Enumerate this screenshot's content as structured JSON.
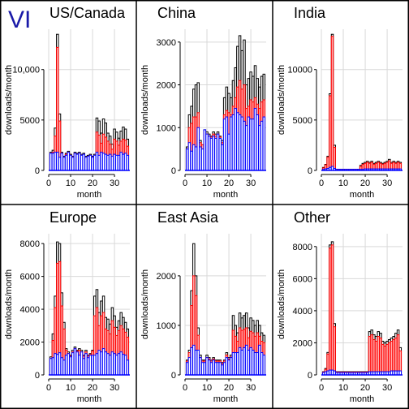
{
  "figure": {
    "label": "VI",
    "label_color": "#1a1aa8",
    "border_color": "#000000",
    "grid_color": "#d9d9d9",
    "colors": {
      "total": "#000000",
      "mid": "#ff0000",
      "base": "#0000ff",
      "mid_fill": "#ffb0b0",
      "base_fill": "#ffffff"
    }
  },
  "chart_data": [
    {
      "type": "bar",
      "title": "US/Canada",
      "xlabel": "month",
      "ylabel": "downloads/month",
      "xlim": [
        0,
        37
      ],
      "ylim": [
        0,
        14000
      ],
      "yticks": [
        0,
        5000,
        10000
      ],
      "ytick_labels": [
        "0",
        "5000",
        "10,000"
      ],
      "xticks": [
        0,
        10,
        20,
        30
      ],
      "xtick_labels": [
        "0",
        "10",
        "20",
        "30"
      ],
      "grid": true,
      "x": [
        1,
        2,
        3,
        4,
        5,
        6,
        7,
        8,
        9,
        10,
        11,
        12,
        13,
        14,
        15,
        16,
        17,
        18,
        19,
        20,
        21,
        22,
        23,
        24,
        25,
        26,
        27,
        28,
        29,
        30,
        31,
        32,
        33,
        34,
        35,
        36
      ],
      "series": [
        {
          "values": [
            1800,
            2000,
            4200,
            13500,
            5600,
            1800,
            1400,
            1700,
            1900,
            1600,
            1400,
            1800,
            1700,
            1800,
            1600,
            1700,
            1400,
            1500,
            1600,
            1400,
            1600,
            5200,
            4900,
            3700,
            5100,
            4700,
            3700,
            3400,
            2600,
            4100,
            3800,
            3200,
            3900,
            4300,
            4100,
            3100
          ]
        },
        {
          "values": [
            1700,
            1800,
            3400,
            12200,
            4900,
            1700,
            1300,
            1600,
            1800,
            1500,
            1300,
            1700,
            1600,
            1700,
            1500,
            1600,
            1300,
            1400,
            1500,
            1300,
            1500,
            3800,
            3500,
            2700,
            3600,
            3300,
            2900,
            2600,
            2100,
            3100,
            2900,
            2500,
            2900,
            3100,
            3000,
            2400
          ]
        },
        {
          "values": [
            1700,
            1700,
            1800,
            1800,
            1300,
            1700,
            1300,
            1500,
            1800,
            1500,
            1300,
            1700,
            1600,
            1700,
            1500,
            1600,
            1300,
            1400,
            1500,
            1300,
            1500,
            1800,
            1500,
            1800,
            1700,
            1600,
            1500,
            1600,
            1400,
            1600,
            1500,
            1500,
            1800,
            1600,
            1700,
            1500
          ]
        }
      ]
    },
    {
      "type": "bar",
      "title": "China",
      "xlabel": "month",
      "ylabel": "downloads/month",
      "xlim": [
        0,
        37
      ],
      "ylim": [
        0,
        3300
      ],
      "yticks": [
        0,
        1000,
        2000,
        3000
      ],
      "ytick_labels": [
        "0",
        "1000",
        "2000",
        "3000"
      ],
      "xticks": [
        0,
        10,
        20,
        30
      ],
      "xtick_labels": [
        "0",
        "10",
        "20",
        "30"
      ],
      "grid": true,
      "x": [
        1,
        2,
        3,
        4,
        5,
        6,
        7,
        8,
        9,
        10,
        11,
        12,
        13,
        14,
        15,
        16,
        17,
        18,
        19,
        20,
        21,
        22,
        23,
        24,
        25,
        26,
        27,
        28,
        29,
        30,
        31,
        32,
        33,
        34,
        35,
        36
      ],
      "series": [
        {
          "values": [
            550,
            1300,
            1500,
            1900,
            2000,
            2050,
            700,
            600,
            950,
            900,
            850,
            800,
            900,
            850,
            900,
            800,
            700,
            1700,
            1950,
            1800,
            1700,
            2100,
            2400,
            2900,
            3150,
            2800,
            3050,
            2000,
            2150,
            2300,
            2200,
            2450,
            2150,
            1950,
            2200,
            2250
          ]
        },
        {
          "values": [
            500,
            1000,
            1100,
            1250,
            1250,
            1350,
            650,
            600,
            900,
            850,
            800,
            780,
            850,
            800,
            850,
            780,
            650,
            1300,
            1400,
            1350,
            1300,
            1500,
            1700,
            1950,
            2100,
            1900,
            2000,
            1450,
            1500,
            1650,
            1600,
            1700,
            1550,
            1450,
            1600,
            1650
          ]
        },
        {
          "values": [
            500,
            650,
            450,
            600,
            550,
            1000,
            550,
            500,
            950,
            850,
            800,
            750,
            800,
            750,
            850,
            750,
            600,
            1200,
            1250,
            850,
            1250,
            1300,
            1450,
            1350,
            1300,
            1250,
            1150,
            1050,
            1250,
            1200,
            1200,
            1450,
            1300,
            1050,
            1150,
            1250
          ]
        }
      ]
    },
    {
      "type": "bar",
      "title": "India",
      "xlabel": "month",
      "ylabel": "downloads/month",
      "xlim": [
        0,
        37
      ],
      "ylim": [
        0,
        14000
      ],
      "yticks": [
        0,
        5000,
        10000
      ],
      "ytick_labels": [
        "0",
        "5000",
        "10000"
      ],
      "xticks": [
        0,
        10,
        20,
        30
      ],
      "xtick_labels": [
        "0",
        "10",
        "20",
        "30"
      ],
      "grid": true,
      "x": [
        1,
        2,
        3,
        4,
        5,
        6,
        7,
        8,
        9,
        10,
        11,
        12,
        13,
        14,
        15,
        16,
        17,
        18,
        19,
        20,
        21,
        22,
        23,
        24,
        25,
        26,
        27,
        28,
        29,
        30,
        31,
        32,
        33,
        34,
        35,
        36
      ],
      "series": [
        {
          "values": [
            300,
            600,
            1400,
            7600,
            13500,
            2500,
            100,
            100,
            100,
            100,
            100,
            100,
            100,
            100,
            100,
            100,
            100,
            500,
            700,
            800,
            900,
            800,
            900,
            700,
            800,
            900,
            800,
            700,
            800,
            900,
            1100,
            800,
            900,
            800,
            900,
            800
          ]
        },
        {
          "values": [
            250,
            550,
            1300,
            7400,
            13300,
            2300,
            100,
            100,
            100,
            100,
            100,
            100,
            100,
            100,
            100,
            100,
            100,
            400,
            600,
            700,
            800,
            700,
            800,
            600,
            700,
            800,
            700,
            600,
            700,
            800,
            950,
            700,
            800,
            700,
            800,
            700
          ]
        },
        {
          "values": [
            100,
            150,
            200,
            300,
            400,
            200,
            100,
            100,
            100,
            100,
            100,
            100,
            100,
            100,
            100,
            100,
            100,
            100,
            100,
            150,
            150,
            150,
            150,
            150,
            150,
            150,
            150,
            150,
            150,
            150,
            150,
            150,
            150,
            150,
            150,
            150
          ]
        }
      ]
    },
    {
      "type": "bar",
      "title": "Europe",
      "xlabel": "month",
      "ylabel": "downloads/month",
      "xlim": [
        0,
        37
      ],
      "ylim": [
        0,
        8600
      ],
      "yticks": [
        0,
        2000,
        4000,
        6000,
        8000
      ],
      "ytick_labels": [
        "0",
        "2000",
        "4000",
        "6000",
        "8000"
      ],
      "xticks": [
        0,
        10,
        20,
        30
      ],
      "xtick_labels": [
        "0",
        "10",
        "20",
        "30"
      ],
      "grid": true,
      "x": [
        1,
        2,
        3,
        4,
        5,
        6,
        7,
        8,
        9,
        10,
        11,
        12,
        13,
        14,
        15,
        16,
        17,
        18,
        19,
        20,
        21,
        22,
        23,
        24,
        25,
        26,
        27,
        28,
        29,
        30,
        31,
        32,
        33,
        34,
        35,
        36
      ],
      "series": [
        {
          "values": [
            1100,
            2500,
            4800,
            8100,
            8000,
            5000,
            3200,
            1600,
            1400,
            1200,
            1500,
            1700,
            1500,
            1600,
            1500,
            1200,
            1500,
            1200,
            1300,
            1500,
            4800,
            5200,
            3800,
            4500,
            4800,
            3500,
            3400,
            3100,
            4100,
            3600,
            2900,
            3300,
            3800,
            3500,
            3200,
            2800
          ]
        },
        {
          "values": [
            1000,
            2100,
            4100,
            6800,
            6900,
            4200,
            2800,
            1500,
            1300,
            1150,
            1400,
            1600,
            1450,
            1500,
            1400,
            1150,
            1400,
            1150,
            1250,
            1450,
            3600,
            4100,
            3000,
            3600,
            3800,
            2800,
            2700,
            2500,
            3300,
            2900,
            2400,
            2700,
            3000,
            2800,
            2600,
            2300
          ]
        },
        {
          "values": [
            1000,
            1050,
            1300,
            1250,
            1350,
            1050,
            900,
            1200,
            1300,
            1100,
            1350,
            1600,
            1400,
            1200,
            1400,
            1000,
            1300,
            1050,
            1200,
            1200,
            1200,
            1300,
            1500,
            1400,
            1600,
            1400,
            1300,
            1200,
            1400,
            1300,
            1200,
            1300,
            1400,
            1250,
            1200,
            900
          ]
        }
      ]
    },
    {
      "type": "bar",
      "title": "East Asia",
      "xlabel": "month",
      "ylabel": "downloads/month",
      "xlim": [
        0,
        37
      ],
      "ylim": [
        0,
        2850
      ],
      "yticks": [
        0,
        1000,
        2000
      ],
      "ytick_labels": [
        "0",
        "1000",
        "2000"
      ],
      "xticks": [
        0,
        10,
        20,
        30
      ],
      "xtick_labels": [
        "0",
        "10",
        "20",
        "30"
      ],
      "grid": true,
      "x": [
        1,
        2,
        3,
        4,
        5,
        6,
        7,
        8,
        9,
        10,
        11,
        12,
        13,
        14,
        15,
        16,
        17,
        18,
        19,
        20,
        21,
        22,
        23,
        24,
        25,
        26,
        27,
        28,
        29,
        30,
        31,
        32,
        33,
        34,
        35,
        36
      ],
      "series": [
        {
          "values": [
            300,
            500,
            1700,
            2650,
            2000,
            950,
            400,
            300,
            300,
            400,
            350,
            300,
            350,
            300,
            300,
            300,
            250,
            300,
            450,
            350,
            400,
            1200,
            1000,
            850,
            1250,
            1150,
            1200,
            1250,
            950,
            1150,
            1100,
            1000,
            1100,
            1000,
            850,
            800
          ]
        },
        {
          "values": [
            280,
            450,
            1400,
            2000,
            1600,
            800,
            350,
            280,
            280,
            350,
            320,
            280,
            320,
            280,
            280,
            280,
            230,
            280,
            400,
            320,
            360,
            900,
            780,
            680,
            950,
            900,
            920,
            950,
            750,
            880,
            850,
            780,
            850,
            780,
            680,
            650
          ]
        },
        {
          "values": [
            250,
            350,
            550,
            600,
            500,
            500,
            350,
            250,
            250,
            350,
            300,
            250,
            300,
            250,
            250,
            250,
            200,
            250,
            350,
            300,
            350,
            450,
            450,
            450,
            550,
            500,
            550,
            600,
            500,
            550,
            500,
            450,
            450,
            600,
            450,
            400
          ]
        }
      ]
    },
    {
      "type": "bar",
      "title": "Other",
      "xlabel": "month",
      "ylabel": "downloads/month",
      "xlim": [
        0,
        37
      ],
      "ylim": [
        0,
        8800
      ],
      "yticks": [
        0,
        2000,
        4000,
        6000,
        8000
      ],
      "ytick_labels": [
        "0",
        "2000",
        "4000",
        "6000",
        "8000"
      ],
      "xticks": [
        0,
        10,
        20,
        30
      ],
      "xtick_labels": [
        "0",
        "10",
        "20",
        "30"
      ],
      "grid": true,
      "x": [
        1,
        2,
        3,
        4,
        5,
        6,
        7,
        8,
        9,
        10,
        11,
        12,
        13,
        14,
        15,
        16,
        17,
        18,
        19,
        20,
        21,
        22,
        23,
        24,
        25,
        26,
        27,
        28,
        29,
        30,
        31,
        32,
        33,
        34,
        35,
        36
      ],
      "series": [
        {
          "values": [
            200,
            400,
            1400,
            8100,
            8300,
            3200,
            200,
            200,
            200,
            200,
            200,
            200,
            200,
            200,
            200,
            200,
            200,
            200,
            200,
            200,
            200,
            2700,
            2800,
            2500,
            2400,
            2700,
            2600,
            2100,
            2000,
            2100,
            2200,
            2300,
            2400,
            2600,
            2800,
            1700
          ]
        },
        {
          "values": [
            180,
            350,
            1300,
            7900,
            8100,
            3000,
            180,
            180,
            180,
            180,
            180,
            180,
            180,
            180,
            180,
            180,
            180,
            180,
            180,
            180,
            180,
            2400,
            2500,
            2200,
            2100,
            2400,
            2300,
            1900,
            1800,
            1900,
            2000,
            2100,
            2200,
            2300,
            2500,
            1500
          ]
        },
        {
          "values": [
            150,
            200,
            250,
            300,
            300,
            250,
            150,
            150,
            150,
            150,
            150,
            150,
            150,
            150,
            150,
            150,
            150,
            150,
            150,
            150,
            150,
            200,
            200,
            200,
            200,
            200,
            200,
            200,
            200,
            200,
            200,
            250,
            250,
            250,
            250,
            250
          ]
        }
      ]
    }
  ]
}
